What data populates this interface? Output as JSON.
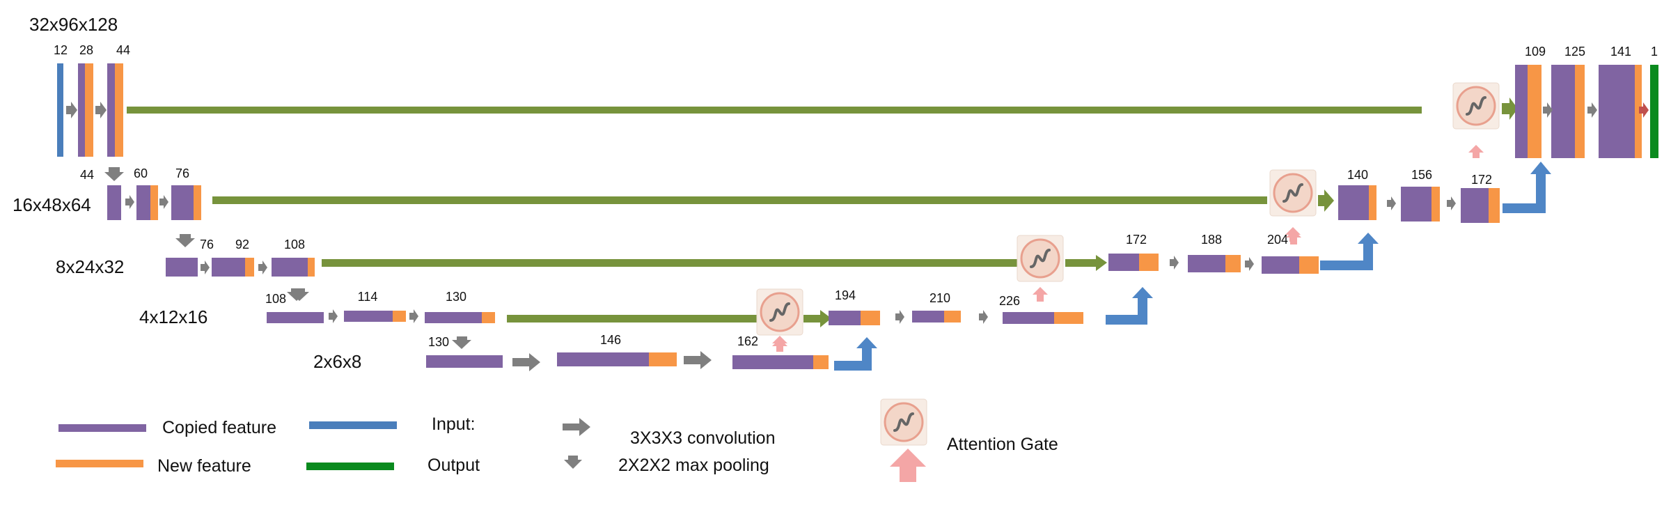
{
  "colors": {
    "input": "#4a7ebb",
    "copied": "#8064a2",
    "new": "#f79646",
    "output": "#0a8a1e",
    "skip": "#77933c",
    "conv": "#7f7f7f",
    "upsample": "#4f86c6",
    "gate_bg": "#f3d6c8",
    "gate_ring": "#e8a08e",
    "gate_arrow": "#f4a6a6",
    "final_arrow": "#c0504d"
  },
  "levels": [
    {
      "label": "32x96x128"
    },
    {
      "label": "16x48x64"
    },
    {
      "label": "8x24x32"
    },
    {
      "label": "4x12x16"
    },
    {
      "label": "2x6x8"
    }
  ],
  "channels": {
    "l0_enc": [
      "12",
      "28",
      "44"
    ],
    "l0_dec": [
      "109",
      "125",
      "141",
      "1"
    ],
    "l1_enc": [
      "44",
      "60",
      "76"
    ],
    "l1_dec": [
      "140",
      "156",
      "172"
    ],
    "l2_enc": [
      "76",
      "92",
      "108"
    ],
    "l2_dec": [
      "172",
      "188",
      "204"
    ],
    "l3_enc": [
      "108",
      "114",
      "130"
    ],
    "l3_dec": [
      "194",
      "210",
      "226"
    ],
    "l4": [
      "130",
      "146",
      "162"
    ]
  },
  "legend": {
    "copied": "Copied feature",
    "new": "New feature",
    "input": "Input:",
    "output": "Output",
    "conv": "3X3X3 convolution",
    "pool": "2X2X2 max pooling",
    "gate": "Attention Gate"
  }
}
